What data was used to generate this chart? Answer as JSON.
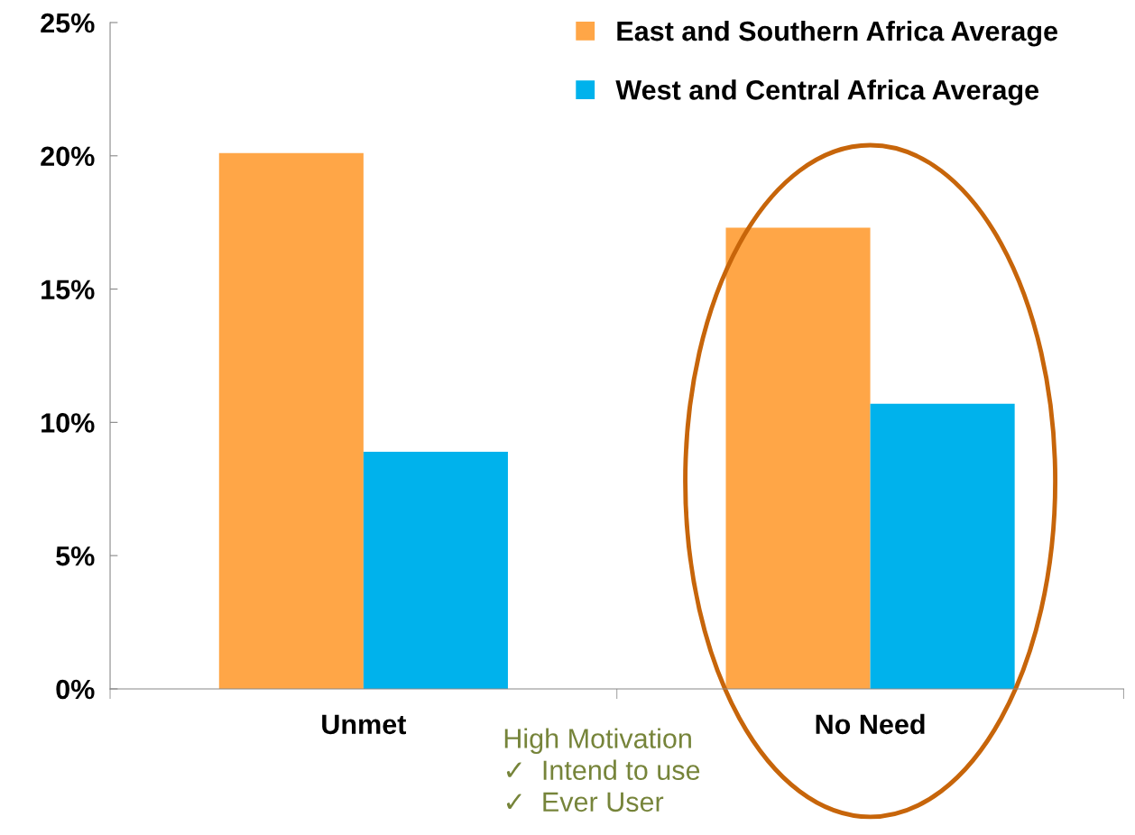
{
  "chart_data": {
    "type": "bar",
    "categories": [
      "Unmet",
      "No Need"
    ],
    "series": [
      {
        "name": "East and Southern Africa Average",
        "color": "#ffa647",
        "values": [
          20.1,
          17.3
        ]
      },
      {
        "name": "West and Central Africa Average",
        "color": "#00b2ec",
        "values": [
          8.9,
          10.7
        ]
      }
    ],
    "ylim": [
      0,
      25
    ],
    "yticks": [
      {
        "value": 0,
        "label": "0%"
      },
      {
        "value": 5,
        "label": "5%"
      },
      {
        "value": 10,
        "label": "10%"
      },
      {
        "value": 15,
        "label": "15%"
      },
      {
        "value": 20,
        "label": "20%"
      },
      {
        "value": 25,
        "label": "25%"
      }
    ],
    "annotations": [
      "High Motivation\n✓  Intend to use\n✓  Ever User"
    ],
    "legend": "top right",
    "grid": false
  }
}
